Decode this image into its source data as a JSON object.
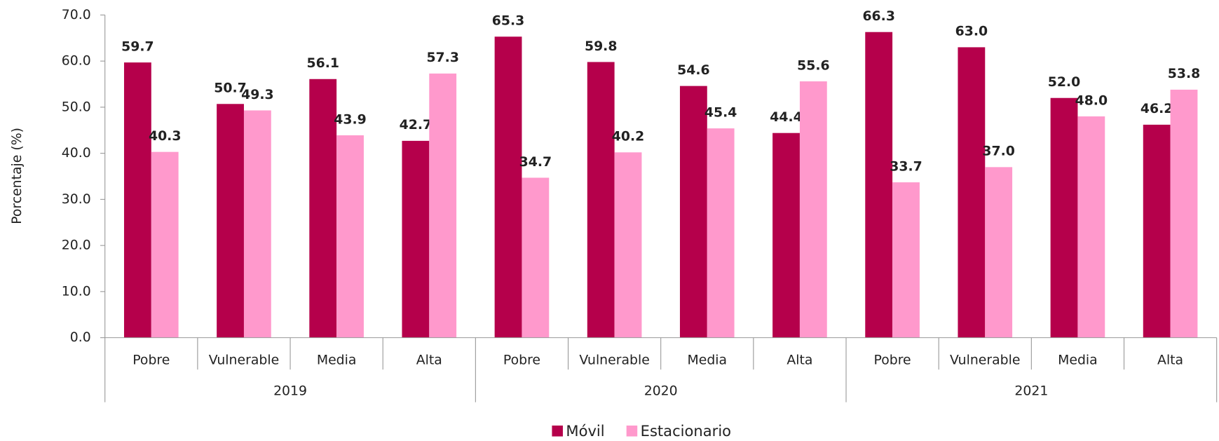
{
  "chart_data": {
    "type": "bar",
    "y_label": "Porcentaje (%)",
    "categories": [
      "Pobre",
      "Vulnerable",
      "Media",
      "Alta",
      "Pobre",
      "Vulnerable",
      "Media",
      "Alta",
      "Pobre",
      "Vulnerable",
      "Media",
      "Alta"
    ],
    "category_groups": [
      "2019",
      "2020",
      "2021"
    ],
    "series": [
      {
        "name": "Móvil",
        "color": "#b5004b",
        "values": [
          59.7,
          50.7,
          56.1,
          42.7,
          65.3,
          59.8,
          54.6,
          44.4,
          66.3,
          63.0,
          52.0,
          46.2
        ],
        "value_labels": [
          "59.7",
          "50.7",
          "56.1",
          "42.7",
          "65.3",
          "59.8",
          "54.6",
          "44.4",
          "66.3",
          "63.0",
          "52.0",
          "46.2"
        ]
      },
      {
        "name": "Estacionario",
        "color": "#ff99cc",
        "values": [
          40.3,
          49.3,
          43.9,
          57.3,
          34.7,
          40.2,
          45.4,
          55.6,
          33.7,
          37.0,
          48.0,
          53.8
        ],
        "value_labels": [
          "40.3",
          "49.3",
          "43.9",
          "57.3",
          "34.7",
          "40.2",
          "45.4",
          "55.6",
          "33.7",
          "37.0",
          "48.0",
          "53.8"
        ]
      }
    ],
    "ylim": [
      0,
      70
    ],
    "yticks": [
      {
        "value": 0,
        "label": "0.0"
      },
      {
        "value": 10,
        "label": "10.0"
      },
      {
        "value": 20,
        "label": "20.0"
      },
      {
        "value": 30,
        "label": "30.0"
      },
      {
        "value": 40,
        "label": "40.0"
      },
      {
        "value": 50,
        "label": "50.0"
      },
      {
        "value": 60,
        "label": "60.0"
      },
      {
        "value": 70,
        "label": "70.0"
      }
    ],
    "legend": "bottom"
  }
}
